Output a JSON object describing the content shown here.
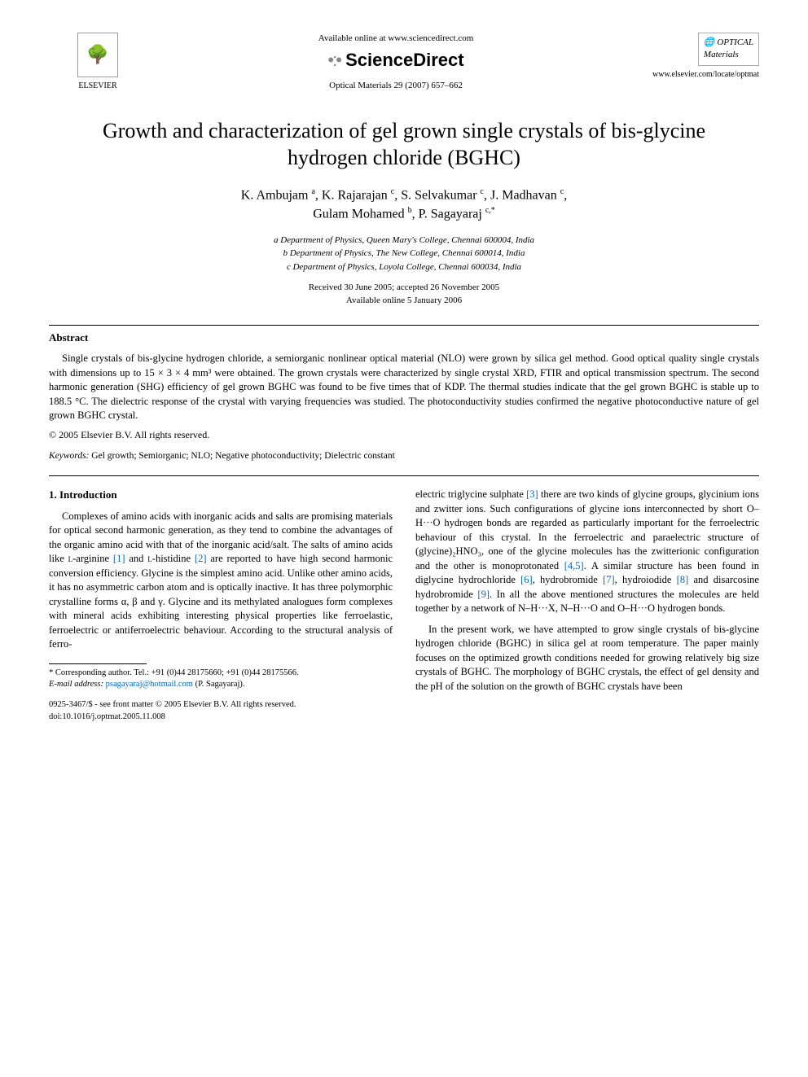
{
  "header": {
    "publisher_name": "ELSEVIER",
    "available_text": "Available online at www.sciencedirect.com",
    "sd_brand": "ScienceDirect",
    "journal_citation": "Optical Materials 29 (2007) 657–662",
    "journal_logo_line1": "OPTICAL",
    "journal_logo_line2": "Materials",
    "locate_url": "www.elsevier.com/locate/optmat"
  },
  "article": {
    "title": "Growth and characterization of gel grown single crystals of bis-glycine hydrogen chloride (BGHC)",
    "authors_html": "K. Ambujam <sup>a</sup>, K. Rajarajan <sup>c</sup>, S. Selvakumar <sup>c</sup>, J. Madhavan <sup>c</sup>, Gulam Mohamed <sup>b</sup>, P. Sagayaraj <sup>c,*</sup>",
    "affiliations": [
      "a Department of Physics, Queen Mary's College, Chennai 600004, India",
      "b Department of Physics, The New College, Chennai 600014, India",
      "c Department of Physics, Loyola College, Chennai 600034, India"
    ],
    "history": "Received 30 June 2005; accepted 26 November 2005",
    "online": "Available online 5 January 2006"
  },
  "abstract": {
    "heading": "Abstract",
    "body": "Single crystals of bis-glycine hydrogen chloride, a semiorganic nonlinear optical material (NLO) were grown by silica gel method. Good optical quality single crystals with dimensions up to 15 × 3 × 4 mm³ were obtained. The grown crystals were characterized by single crystal XRD, FTIR and optical transmission spectrum. The second harmonic generation (SHG) efficiency of gel grown BGHC was found to be five times that of KDP. The thermal studies indicate that the gel grown BGHC is stable up to 188.5 °C. The dielectric response of the crystal with varying frequencies was studied. The photoconductivity studies confirmed the negative photoconductive nature of gel grown BGHC crystal.",
    "copyright": "© 2005 Elsevier B.V. All rights reserved."
  },
  "keywords": {
    "label": "Keywords:",
    "text": "Gel growth; Semiorganic; NLO; Negative photoconductivity; Dielectric constant"
  },
  "intro": {
    "heading": "1. Introduction",
    "col_left_p1_a": "Complexes of amino acids with inorganic acids and salts are promising materials for optical second harmonic generation, as they tend to combine the advantages of the organic amino acid with that of the inorganic acid/salt. The salts of amino acids like ",
    "l_arg": "l",
    "col_left_p1_b": "-arginine ",
    "ref1": "[1]",
    "col_left_p1_c": " and ",
    "l_his": "l",
    "col_left_p1_d": "-histidine ",
    "ref2": "[2]",
    "col_left_p1_e": " are reported to have high second harmonic conversion efficiency. Glycine is the simplest amino acid. Unlike other amino acids, it has no asymmetric carbon atom and is optically inactive. It has three polymorphic crystalline forms α, β and γ. Glycine and its methylated analogues form complexes with mineral acids exhibiting interesting physical properties like ferroelastic, ferroelectric or antiferroelectric behaviour. According to the structural analysis of ferro-",
    "col_right_p1_a": "electric triglycine sulphate ",
    "ref3": "[3]",
    "col_right_p1_b": " there are two kinds of glycine groups, glycinium ions and zwitter ions. Such configurations of glycine ions interconnected by short O–H···O hydrogen bonds are regarded as particularly important for the ferroelectric behaviour of this crystal. In the ferroelectric and paraelectric structure of (glycine)₂HNO₃, one of the glycine molecules has the zwitterionic configuration and the other is monoprotonated ",
    "ref45": "[4,5]",
    "col_right_p1_c": ". A similar structure has been found in diglycine hydrochloride ",
    "ref6": "[6]",
    "col_right_p1_d": ", hydrobromide ",
    "ref7": "[7]",
    "col_right_p1_e": ", hydroiodide ",
    "ref8": "[8]",
    "col_right_p1_f": " and disarcosine hydrobromide ",
    "ref9": "[9]",
    "col_right_p1_g": ". In all the above mentioned structures the molecules are held together by a network of N–H···X, N–H···O and O–H···O hydrogen bonds.",
    "col_right_p2": "In the present work, we have attempted to grow single crystals of bis-glycine hydrogen chloride (BGHC) in silica gel at room temperature. The paper mainly focuses on the optimized growth conditions needed for growing relatively big size crystals of BGHC. The morphology of BGHC crystals, the effect of gel density and the pH of the solution on the growth of BGHC crystals have been"
  },
  "footnote": {
    "corr_label": "* Corresponding author. Tel.: +91 (0)44 28175660; +91 (0)44 28175566.",
    "email_label": "E-mail address:",
    "email": "psagayaraj@hotmail.com",
    "email_person": "(P. Sagayaraj)."
  },
  "doi_block": {
    "line1": "0925-3467/$ - see front matter © 2005 Elsevier B.V. All rights reserved.",
    "line2": "doi:10.1016/j.optmat.2005.11.008"
  },
  "colors": {
    "link": "#0066cc",
    "text": "#000000",
    "bg": "#ffffff"
  }
}
